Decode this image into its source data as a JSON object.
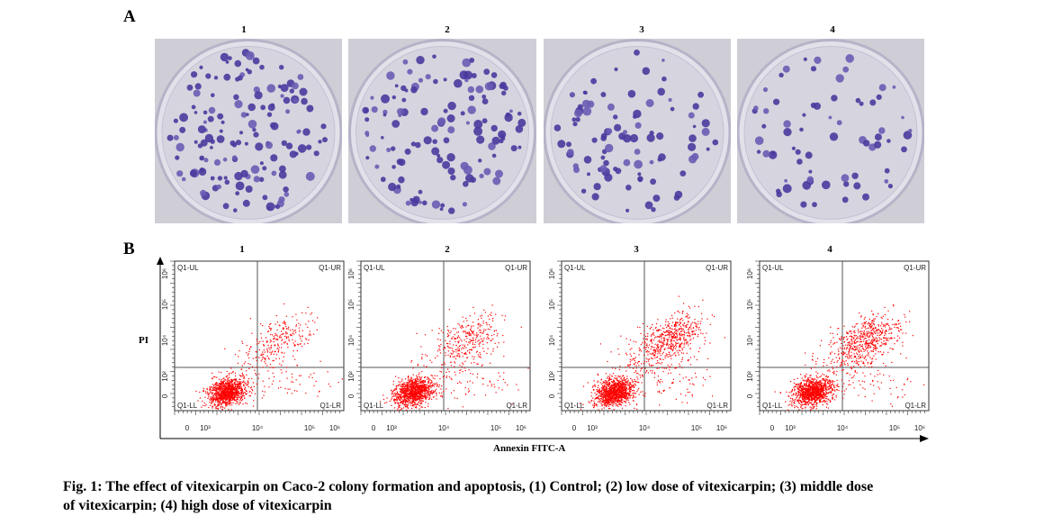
{
  "panel_a": {
    "letter": "A",
    "labels": [
      "1",
      "2",
      "3",
      "4"
    ]
  },
  "panel_b": {
    "letter": "B",
    "labels": [
      "1",
      "2",
      "3",
      "4"
    ],
    "quadrants": {
      "ul": "Q1-UL",
      "ur": "Q1-UR",
      "ll": "Q1-LL",
      "lr": "Q1-LR"
    },
    "x_ticks": [
      "0",
      "10³",
      "10⁴",
      "10⁵",
      "10⁶"
    ],
    "y_ticks": [
      "0",
      "10²",
      "10⁴",
      "10⁵",
      "10⁶"
    ],
    "y_axis_label": "PI",
    "x_axis_label": "Annexin FITC-A",
    "colors": {
      "dots": "#ff0000",
      "gate": "#555555"
    }
  },
  "caption": {
    "line1": "Fig. 1: The effect of vitexicarpin on Caco-2 colony formation and apoptosis, (1) Control; (2) low dose of vitexicarpin; (3) middle dose",
    "line2": "of vitexicarpin; (4) high dose of vitexicarpin"
  }
}
